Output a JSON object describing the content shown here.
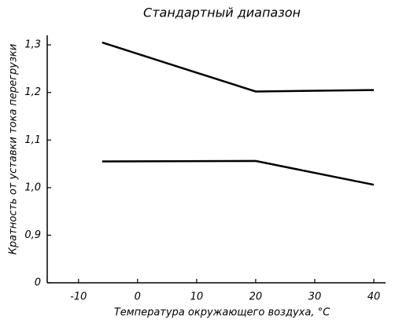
{
  "chart_data": {
    "type": "line",
    "title": "Стандартный диапазон",
    "x_label": "Температура окружающего воздуха, °C",
    "y_label": "Кратность от уставки тока перегрузки",
    "series": [
      {
        "color": "#000000",
        "x": [
          -6,
          20,
          40
        ],
        "values": [
          1.305,
          1.202,
          1.205
        ]
      },
      {
        "color": "#000000",
        "x": [
          -6,
          20,
          40
        ],
        "values": [
          1.055,
          1.056,
          1.006
        ]
      }
    ],
    "xlim": [
      -15.3,
      42
    ],
    "xticks": [
      -10,
      0,
      10,
      20,
      30,
      40
    ],
    "ylim": [
      0,
      1.32
    ],
    "yticks": [
      0,
      {
        "value": 0.9,
        "label": "0,9"
      },
      {
        "value": 1.0,
        "label": "1,0"
      },
      {
        "value": 1.1,
        "label": "1,1"
      },
      {
        "value": 1.2,
        "label": "1,2"
      },
      {
        "value": 1.3,
        "label": "1,3"
      }
    ],
    "y_axis_break": true,
    "grid": false
  }
}
